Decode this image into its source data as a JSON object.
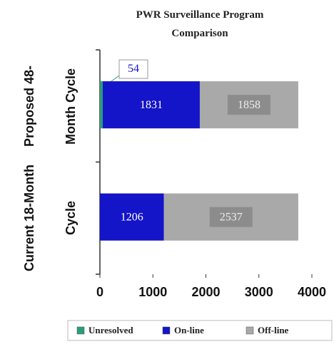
{
  "chart_data": {
    "type": "stacked-bar-horizontal",
    "title": "PWR Surveillance Program Comparison",
    "categories": [
      "Proposed 48-Month Cycle",
      "Current 18-Month Cycle"
    ],
    "series": [
      {
        "name": "Unresolved",
        "color": "#2a9d7a",
        "values": [
          54,
          0
        ]
      },
      {
        "name": "On-line",
        "color": "#1414c8",
        "values": [
          1831,
          1206
        ]
      },
      {
        "name": "Off-line",
        "color": "#a9a9a9",
        "values": [
          1858,
          2537
        ]
      }
    ],
    "xlim": [
      0,
      4000
    ],
    "xticks": [
      0,
      1000,
      2000,
      3000,
      4000
    ],
    "legend": "bottom"
  }
}
